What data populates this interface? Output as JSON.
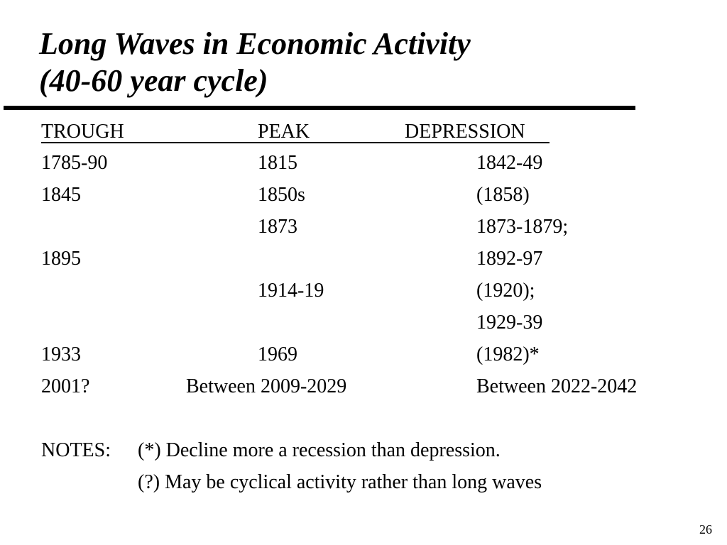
{
  "slide": {
    "title_line1": "Long Waves in Economic Activity",
    "title_line2": "(40-60 year cycle)",
    "page_number": "26"
  },
  "table": {
    "headers": {
      "trough": "TROUGH",
      "peak": "PEAK",
      "depression": "DEPRESSION"
    },
    "rows": [
      {
        "trough": "1785-90",
        "peak": "1815",
        "depression": "1842-49"
      },
      {
        "trough": "1845",
        "peak": "1850s",
        "depression": "(1858)"
      },
      {
        "trough": "",
        "peak": "1873",
        "depression": "1873-1879;"
      },
      {
        "trough": "1895",
        "peak": "",
        "depression": "1892-97"
      },
      {
        "trough": "",
        "peak": "1914-19",
        "depression": "(1920);"
      },
      {
        "trough": "",
        "peak": "",
        "depression": "1929-39"
      },
      {
        "trough": "1933",
        "peak": "1969",
        "depression": "(1982)*"
      },
      {
        "trough": "2001?",
        "peak": "Between 2009-2029",
        "depression": "Between 2022-2042"
      }
    ]
  },
  "notes": {
    "label": "NOTES:",
    "note1": "(*) Decline more a recession than depression.",
    "note2": "(?) May be cyclical activity rather than long waves"
  }
}
